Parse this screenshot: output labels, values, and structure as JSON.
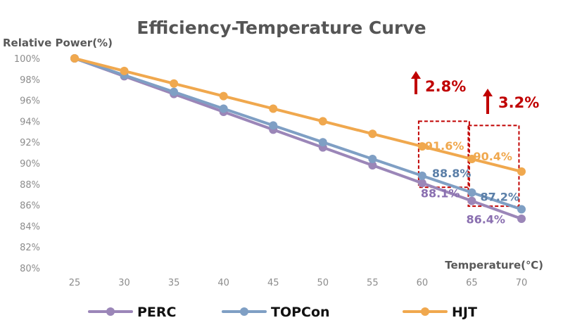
{
  "chart_data": {
    "type": "line",
    "title": "Efficiency-Temperature Curve",
    "ylabel": "Relative Power(%)",
    "xlabel": "Temperature(℃)",
    "x": [
      25,
      30,
      35,
      40,
      45,
      50,
      55,
      60,
      65,
      70
    ],
    "xlim": [
      25,
      70
    ],
    "ylim": [
      80,
      100
    ],
    "y_ticks": [
      "100%",
      "98%",
      "96%",
      "94%",
      "92%",
      "90%",
      "88%",
      "86%",
      "84%",
      "82%",
      "80%"
    ],
    "grid": false,
    "legend_position": "bottom",
    "series": [
      {
        "name": "PERC",
        "color": "#9b86b8",
        "values": [
          100,
          98.3,
          96.6,
          94.9,
          93.2,
          91.5,
          89.8,
          88.1,
          86.4,
          84.7
        ]
      },
      {
        "name": "TOPCon",
        "color": "#7f9fc4",
        "values": [
          100,
          98.4,
          96.8,
          95.2,
          93.6,
          92.0,
          90.4,
          88.8,
          87.2,
          85.6
        ]
      },
      {
        "name": "HJT",
        "color": "#f0a84e",
        "values": [
          100,
          98.8,
          97.6,
          96.4,
          95.2,
          94.0,
          92.8,
          91.6,
          90.4,
          89.2
        ]
      }
    ],
    "annotations": {
      "point_labels": [
        {
          "text": "91.6%",
          "series": "HJT",
          "x": 60,
          "color": "#f0a84e"
        },
        {
          "text": "88.8%",
          "series": "TOPCon",
          "x": 60,
          "color": "#5b7fa8"
        },
        {
          "text": "88.1%",
          "series": "PERC",
          "x": 60,
          "color": "#8a6fb0"
        },
        {
          "text": "90.4%",
          "series": "HJT",
          "x": 65,
          "color": "#f0a84e"
        },
        {
          "text": "87.2%",
          "series": "TOPCon",
          "x": 65,
          "color": "#5b7fa8"
        },
        {
          "text": "86.4%",
          "series": "PERC",
          "x": 65,
          "color": "#8a6fb0"
        }
      ],
      "gains": [
        {
          "text": "2.8%",
          "x": 60,
          "color": "#c00000"
        },
        {
          "text": "3.2%",
          "x": 65,
          "color": "#c00000"
        }
      ]
    }
  }
}
